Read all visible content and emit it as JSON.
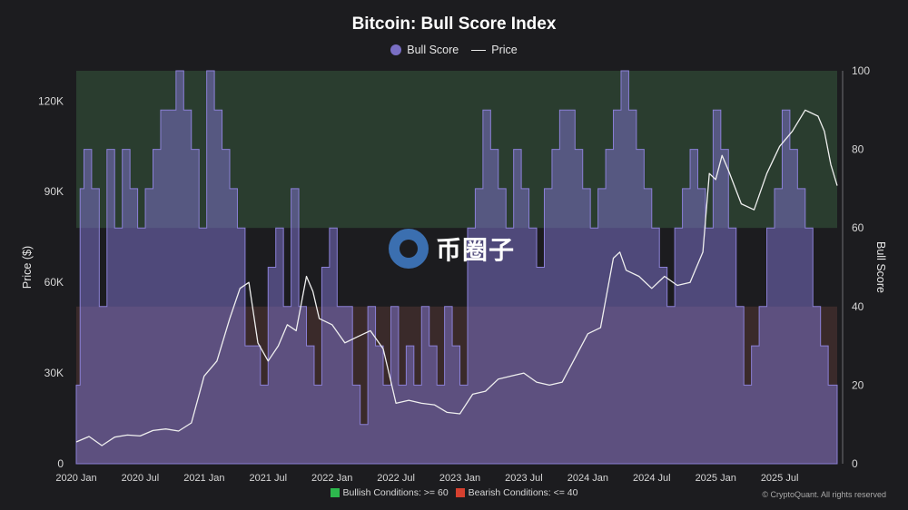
{
  "chart_data": {
    "type": "line",
    "title": "Bitcoin: Bull Score Index",
    "legend": {
      "placement": "top-center",
      "items": [
        "Bull Score",
        "Price"
      ]
    },
    "x_ticks": [
      "2020 Jan",
      "2020 Jul",
      "2021 Jan",
      "2021 Jul",
      "2022 Jan",
      "2022 Jul",
      "2023 Jan",
      "2023 Jul",
      "2024 Jan",
      "2024 Jul",
      "2025 Jan",
      "2025 Jul"
    ],
    "x_range": [
      2020.0,
      2025.95
    ],
    "y_left": {
      "label": "Price ($)",
      "ticks": [
        "0",
        "30K",
        "60K",
        "90K",
        "120K"
      ],
      "range": [
        0,
        130000
      ]
    },
    "y_right": {
      "label": "Bull Score",
      "ticks": [
        "0",
        "20",
        "40",
        "60",
        "80",
        "100"
      ],
      "range": [
        0,
        100
      ]
    },
    "zones": [
      {
        "name": "Bullish Conditions: >= 60",
        "from": 60,
        "to": 100,
        "color": "#2a3d2f"
      },
      {
        "name": "Bearish Conditions: <= 40",
        "from": 0,
        "to": 40,
        "color": "#3a2a2a"
      }
    ],
    "series": [
      {
        "name": "Price",
        "color": "#efefef",
        "x": [
          2020.0,
          2020.1,
          2020.2,
          2020.3,
          2020.4,
          2020.5,
          2020.6,
          2020.7,
          2020.8,
          2020.9,
          2021.0,
          2021.1,
          2021.2,
          2021.28,
          2021.35,
          2021.42,
          2021.5,
          2021.58,
          2021.65,
          2021.72,
          2021.8,
          2021.85,
          2021.9,
          2022.0,
          2022.1,
          2022.2,
          2022.3,
          2022.4,
          2022.45,
          2022.5,
          2022.6,
          2022.7,
          2022.8,
          2022.9,
          2023.0,
          2023.1,
          2023.2,
          2023.3,
          2023.4,
          2023.5,
          2023.6,
          2023.7,
          2023.8,
          2023.9,
          2024.0,
          2024.1,
          2024.2,
          2024.25,
          2024.3,
          2024.4,
          2024.5,
          2024.6,
          2024.7,
          2024.8,
          2024.9,
          2024.95,
          2025.0,
          2025.05,
          2025.1,
          2025.2,
          2025.3,
          2025.4,
          2025.5,
          2025.6,
          2025.7,
          2025.8,
          2025.85,
          2025.9,
          2025.95
        ],
        "values": [
          7200,
          9000,
          6000,
          8800,
          9500,
          9200,
          11000,
          11500,
          10800,
          13500,
          29000,
          34000,
          48000,
          58000,
          60000,
          40000,
          34000,
          39000,
          46000,
          44000,
          62000,
          57000,
          48000,
          46000,
          40000,
          42000,
          44000,
          38000,
          29000,
          20000,
          21000,
          20000,
          19500,
          17000,
          16500,
          23000,
          24000,
          28000,
          29000,
          30000,
          27000,
          26000,
          27000,
          35000,
          43000,
          45000,
          68000,
          70000,
          64000,
          62000,
          58000,
          62000,
          59000,
          60000,
          70000,
          96000,
          94000,
          102000,
          97000,
          86000,
          84000,
          96000,
          105000,
          110000,
          117000,
          115000,
          110000,
          99000,
          92000
        ]
      },
      {
        "name": "Bull Score",
        "color": "#7a6fc4",
        "x": [
          2020.0,
          2020.03,
          2020.06,
          2020.12,
          2020.18,
          2020.24,
          2020.3,
          2020.36,
          2020.42,
          2020.48,
          2020.54,
          2020.6,
          2020.66,
          2020.72,
          2020.78,
          2020.84,
          2020.9,
          2020.96,
          2021.02,
          2021.08,
          2021.14,
          2021.2,
          2021.26,
          2021.32,
          2021.38,
          2021.44,
          2021.5,
          2021.56,
          2021.62,
          2021.68,
          2021.74,
          2021.8,
          2021.86,
          2021.92,
          2021.98,
          2022.04,
          2022.1,
          2022.16,
          2022.22,
          2022.28,
          2022.34,
          2022.4,
          2022.46,
          2022.52,
          2022.58,
          2022.64,
          2022.7,
          2022.76,
          2022.82,
          2022.88,
          2022.94,
          2023.0,
          2023.06,
          2023.12,
          2023.18,
          2023.24,
          2023.3,
          2023.36,
          2023.42,
          2023.48,
          2023.54,
          2023.6,
          2023.66,
          2023.72,
          2023.78,
          2023.84,
          2023.9,
          2023.96,
          2024.02,
          2024.08,
          2024.14,
          2024.2,
          2024.26,
          2024.32,
          2024.38,
          2024.44,
          2024.5,
          2024.56,
          2024.62,
          2024.68,
          2024.74,
          2024.8,
          2024.86,
          2024.92,
          2024.98,
          2025.04,
          2025.1,
          2025.16,
          2025.22,
          2025.28,
          2025.34,
          2025.4,
          2025.46,
          2025.52,
          2025.58,
          2025.64,
          2025.7,
          2025.76,
          2025.82,
          2025.88,
          2025.95
        ],
        "values": [
          20,
          70,
          80,
          70,
          40,
          80,
          60,
          80,
          70,
          60,
          70,
          80,
          90,
          90,
          100,
          90,
          80,
          60,
          100,
          90,
          80,
          70,
          60,
          30,
          30,
          20,
          50,
          60,
          40,
          70,
          40,
          30,
          20,
          50,
          60,
          40,
          40,
          20,
          10,
          40,
          30,
          20,
          40,
          20,
          30,
          20,
          40,
          30,
          20,
          40,
          30,
          20,
          60,
          70,
          90,
          80,
          70,
          60,
          80,
          70,
          60,
          50,
          70,
          80,
          90,
          90,
          80,
          70,
          60,
          70,
          80,
          90,
          100,
          90,
          80,
          70,
          60,
          50,
          40,
          60,
          70,
          80,
          70,
          60,
          90,
          80,
          60,
          40,
          20,
          30,
          40,
          60,
          70,
          90,
          80,
          70,
          60,
          40,
          30,
          20,
          10
        ]
      }
    ]
  },
  "footer": {
    "bullish_label": "Bullish Conditions: >= 60",
    "bearish_label": "Bearish Conditions: <= 40",
    "bullish_color": "#2db84d",
    "bearish_color": "#d6402f",
    "credit": "© CryptoQuant. All rights reserved"
  },
  "watermark": "币圈子"
}
